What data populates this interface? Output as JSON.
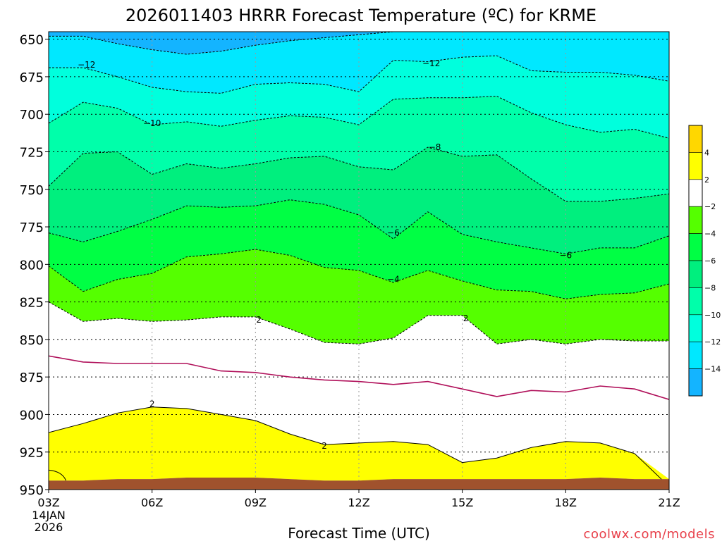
{
  "chart_data": {
    "type": "heatmap",
    "title": "2026011403 HRRR Forecast Temperature (ºC) for KRME",
    "xlabel": "Forecast Time (UTC)",
    "credit": "coolwx.com/models",
    "x_ticks": [
      "03Z",
      "06Z",
      "09Z",
      "12Z",
      "15Z",
      "18Z",
      "21Z"
    ],
    "x_tick_hours": [
      3,
      6,
      9,
      12,
      15,
      18,
      21
    ],
    "x_date_label": [
      "14JAN",
      "2026"
    ],
    "xlim": [
      3,
      21
    ],
    "y_ticks": [
      650,
      675,
      700,
      725,
      750,
      775,
      800,
      825,
      850,
      875,
      900,
      925,
      950
    ],
    "ylim": [
      950,
      645
    ],
    "grid": true,
    "colorbar": {
      "tick_labels": [
        "4",
        "2",
        "-2",
        "-4",
        "-6",
        "-8",
        "-10",
        "-12",
        "-14"
      ],
      "bands": [
        {
          "min": 4,
          "max": 6,
          "color": "#ffd700"
        },
        {
          "min": 2,
          "max": 4,
          "color": "#ffff00"
        },
        {
          "min": -2,
          "max": 2,
          "color": "#ffffff"
        },
        {
          "min": -4,
          "max": -2,
          "color": "#55ff00"
        },
        {
          "min": -6,
          "max": -4,
          "color": "#00ff44"
        },
        {
          "min": -8,
          "max": -6,
          "color": "#00ef7e"
        },
        {
          "min": -10,
          "max": -8,
          "color": "#00ffaa"
        },
        {
          "min": -12,
          "max": -10,
          "color": "#00ffdd"
        },
        {
          "min": -14,
          "max": -12,
          "color": "#00e8ff"
        },
        {
          "min": -16,
          "max": -14,
          "color": "#14b4ff"
        }
      ]
    },
    "hours": [
      3,
      4,
      5,
      6,
      7,
      8,
      9,
      10,
      11,
      12,
      13,
      14,
      15,
      16,
      17,
      18,
      19,
      20,
      21
    ],
    "isotherms": [
      {
        "temp": -14,
        "pressure": [
          648,
          648,
          653,
          657,
          660,
          658,
          654,
          651,
          649,
          647,
          645,
          645,
          645,
          645,
          645,
          645,
          645,
          645,
          645
        ]
      },
      {
        "temp": -12,
        "pressure": [
          669,
          669,
          675,
          682,
          685,
          686,
          680,
          679,
          680,
          685,
          664,
          665,
          662,
          661,
          671,
          672,
          672,
          674,
          678
        ]
      },
      {
        "temp": -10,
        "pressure": [
          706,
          692,
          696,
          707,
          705,
          708,
          704,
          701,
          702,
          707,
          690,
          689,
          689,
          688,
          699,
          707,
          712,
          710,
          716
        ]
      },
      {
        "temp": -8,
        "pressure": [
          748,
          726,
          725,
          740,
          733,
          736,
          733,
          729,
          728,
          735,
          737,
          722,
          728,
          727,
          743,
          758,
          758,
          756,
          753
        ]
      },
      {
        "temp": -6,
        "pressure": [
          779,
          785,
          778,
          770,
          761,
          762,
          761,
          757,
          760,
          767,
          783,
          765,
          780,
          785,
          789,
          793,
          789,
          789,
          781
        ]
      },
      {
        "temp": -4,
        "pressure": [
          801,
          818,
          810,
          806,
          795,
          793,
          790,
          794,
          802,
          804,
          812,
          804,
          811,
          817,
          818,
          823,
          820,
          819,
          813
        ]
      },
      {
        "temp": -2,
        "pressure": [
          825,
          838,
          836,
          838,
          837,
          835,
          835,
          843,
          852,
          853,
          849,
          834,
          834,
          853,
          850,
          853,
          850,
          851,
          851
        ]
      },
      {
        "temp": 0,
        "pressure": [
          861,
          865,
          866,
          866,
          866,
          871,
          872,
          875,
          877,
          878,
          880,
          878,
          883,
          888,
          884,
          885,
          881,
          883,
          890
        ]
      },
      {
        "temp": 2,
        "pressure": [
          912,
          906,
          899,
          895,
          896,
          900,
          904,
          913,
          920,
          919,
          918,
          920,
          932,
          929,
          922,
          918,
          919,
          926,
          948
        ]
      }
    ],
    "surface_pressure": [
      944,
      944,
      943,
      943,
      942,
      942,
      942,
      943,
      944,
      944,
      943,
      943,
      943,
      943,
      943,
      943,
      942,
      943,
      943
    ],
    "surface_color": "#a0522d",
    "freezing_line_color": "#b0105a",
    "contour_labels": [
      {
        "text": "-12",
        "hour": 4.1,
        "pressure": 667
      },
      {
        "text": "-12",
        "hour": 14.1,
        "pressure": 666
      },
      {
        "text": "-10",
        "hour": 6.0,
        "pressure": 706
      },
      {
        "text": "-8",
        "hour": 14.2,
        "pressure": 722
      },
      {
        "text": "-6",
        "hour": 13.0,
        "pressure": 779
      },
      {
        "text": "-6",
        "hour": 18.0,
        "pressure": 794
      },
      {
        "text": "-4",
        "hour": 13.0,
        "pressure": 810
      },
      {
        "text": "2",
        "hour": 9.1,
        "pressure": 837
      },
      {
        "text": "2",
        "hour": 15.1,
        "pressure": 836
      },
      {
        "text": "2",
        "hour": 6.0,
        "pressure": 893
      },
      {
        "text": "2",
        "hour": 11.0,
        "pressure": 921
      }
    ]
  }
}
